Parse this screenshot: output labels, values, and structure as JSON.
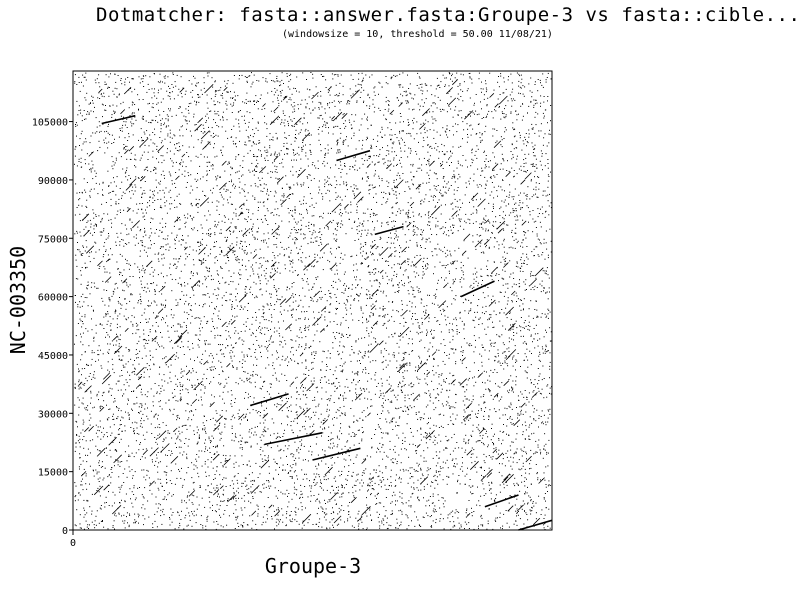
{
  "chart_data": {
    "type": "scatter",
    "title": "Dotmatcher: fasta::answer.fasta:Groupe-3 vs fasta::cible...",
    "subtitle": "(windowsize = 10, threshold = 50.00  11/08/21)",
    "xlabel": "Groupe-3",
    "ylabel": "NC-003350",
    "xlim": [
      0,
      1
    ],
    "ylim": [
      0,
      118000
    ],
    "x_ticks": [
      0
    ],
    "x_tick_labels": [
      "0"
    ],
    "y_ticks": [
      0,
      15000,
      30000,
      45000,
      60000,
      75000,
      90000,
      105000
    ],
    "y_tick_labels": [
      "0",
      "15000",
      "30000",
      "45000",
      "60000",
      "75000",
      "90000",
      "105000"
    ],
    "grid": false,
    "legend": "none",
    "dot_color": "#000000",
    "note": "dense random dot-plot matches with short diagonal segments",
    "diagonal_segments": [
      {
        "x": [
          0.06,
          0.13
        ],
        "y": [
          104500,
          106500
        ]
      },
      {
        "x": [
          0.55,
          0.62
        ],
        "y": [
          95000,
          97500
        ]
      },
      {
        "x": [
          0.63,
          0.69
        ],
        "y": [
          76000,
          78000
        ]
      },
      {
        "x": [
          0.81,
          0.88
        ],
        "y": [
          60000,
          64000
        ]
      },
      {
        "x": [
          0.37,
          0.45
        ],
        "y": [
          32000,
          35000
        ]
      },
      {
        "x": [
          0.4,
          0.52
        ],
        "y": [
          22000,
          25000
        ]
      },
      {
        "x": [
          0.5,
          0.6
        ],
        "y": [
          18000,
          21000
        ]
      },
      {
        "x": [
          0.86,
          0.93
        ],
        "y": [
          6000,
          9000
        ]
      },
      {
        "x": [
          0.93,
          1.0
        ],
        "y": [
          0,
          2500
        ]
      }
    ]
  }
}
